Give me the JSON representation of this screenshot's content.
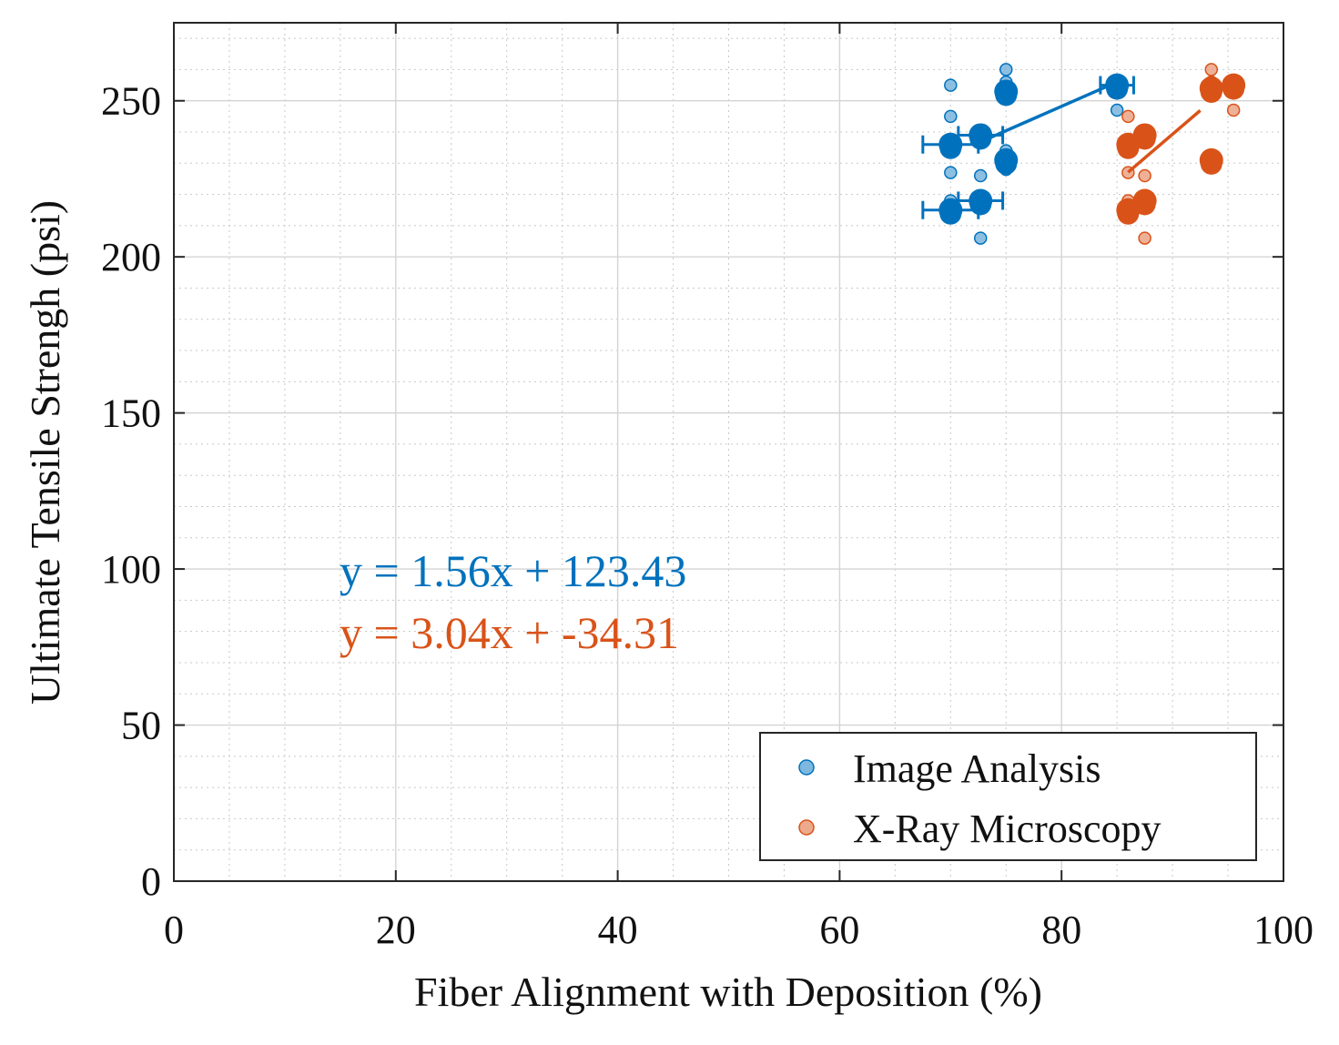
{
  "chart_data": {
    "type": "scatter",
    "xlabel": "Fiber Alignment with Deposition (%)",
    "ylabel": "Ultimate Tensile Strengh (psi)",
    "xlim": [
      0,
      100
    ],
    "ylim": [
      0,
      275
    ],
    "x_ticks": [
      0,
      20,
      40,
      60,
      80,
      100
    ],
    "y_ticks": [
      0,
      50,
      100,
      150,
      200,
      250
    ],
    "grid": "major and minor",
    "legend_position": "bottom-right",
    "series": [
      {
        "name": "Image Analysis",
        "color": "#0072BD",
        "equation": "y = 1.56x + 123.43",
        "slope": 1.56,
        "intercept": 123.43,
        "fit_x": [
          72.5,
          85
        ],
        "raw_points": [
          {
            "x": 70,
            "y": 255
          },
          {
            "x": 70,
            "y": 245
          },
          {
            "x": 70,
            "y": 227
          },
          {
            "x": 70,
            "y": 218
          },
          {
            "x": 72.7,
            "y": 226
          },
          {
            "x": 72.7,
            "y": 206
          },
          {
            "x": 75,
            "y": 260
          },
          {
            "x": 75,
            "y": 256
          },
          {
            "x": 75,
            "y": 251
          },
          {
            "x": 75,
            "y": 234
          },
          {
            "x": 75,
            "y": 228
          },
          {
            "x": 85,
            "y": 247
          }
        ],
        "means": [
          {
            "x": 70,
            "y": 236,
            "xerr": 2.5
          },
          {
            "x": 70,
            "y": 215,
            "xerr": 2.5
          },
          {
            "x": 72.7,
            "y": 239,
            "xerr": 2.0
          },
          {
            "x": 72.7,
            "y": 218,
            "xerr": 2.0
          },
          {
            "x": 75,
            "y": 253,
            "xerr": 0
          },
          {
            "x": 75,
            "y": 231,
            "xerr": 0
          },
          {
            "x": 85,
            "y": 255,
            "xerr": 1.5
          }
        ]
      },
      {
        "name": "X-Ray Microscopy",
        "color": "#D95319",
        "equation": "y = 3.04x + -34.31",
        "slope": 3.04,
        "intercept": -34.31,
        "fit_x": [
          86,
          92.5
        ],
        "raw_points": [
          {
            "x": 86,
            "y": 245
          },
          {
            "x": 86,
            "y": 227
          },
          {
            "x": 86,
            "y": 218
          },
          {
            "x": 87.5,
            "y": 226
          },
          {
            "x": 87.5,
            "y": 206
          },
          {
            "x": 93.5,
            "y": 260
          },
          {
            "x": 93.5,
            "y": 256
          },
          {
            "x": 95.5,
            "y": 247
          }
        ],
        "means": [
          {
            "x": 86,
            "y": 236,
            "xerr": 0
          },
          {
            "x": 86,
            "y": 215,
            "xerr": 0
          },
          {
            "x": 87.5,
            "y": 239,
            "xerr": 0
          },
          {
            "x": 87.5,
            "y": 218,
            "xerr": 0
          },
          {
            "x": 93.5,
            "y": 254,
            "xerr": 0
          },
          {
            "x": 93.5,
            "y": 231,
            "xerr": 0
          },
          {
            "x": 95.5,
            "y": 255,
            "xerr": 0
          }
        ]
      }
    ]
  }
}
